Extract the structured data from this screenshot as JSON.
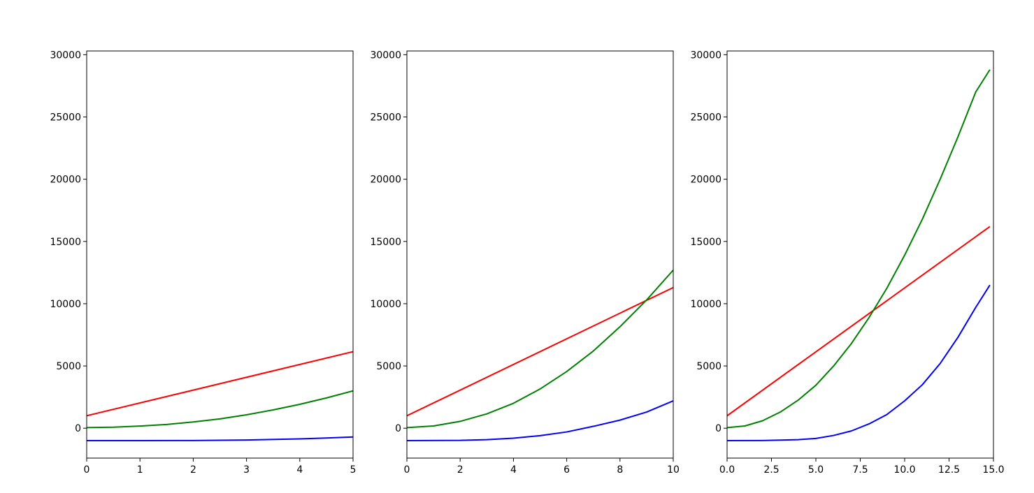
{
  "chart_data": [
    {
      "type": "line",
      "title": "",
      "xlabel": "",
      "ylabel": "",
      "xlim": [
        0,
        5
      ],
      "ylim": [
        -2400,
        30300
      ],
      "grid": false,
      "xticks": [
        0,
        1,
        2,
        3,
        4,
        5
      ],
      "xtick_labels": [
        "0",
        "1",
        "2",
        "3",
        "4",
        "5"
      ],
      "yticks": [
        0,
        5000,
        10000,
        15000,
        20000,
        25000,
        30000
      ],
      "ytick_labels": [
        "0",
        "5000",
        "10000",
        "15000",
        "20000",
        "25000",
        "30000"
      ],
      "series": [
        {
          "color": "#ff0000",
          "x": [
            0,
            5
          ],
          "y": [
            1000,
            6150
          ]
        },
        {
          "color": "#008000",
          "x": [
            0,
            0.5,
            1,
            1.5,
            2,
            2.5,
            3,
            3.5,
            4,
            4.5,
            5
          ],
          "y": [
            50,
            80,
            175,
            300,
            500,
            750,
            1080,
            1470,
            1920,
            2430,
            3000
          ]
        },
        {
          "color": "#0000ff",
          "x": [
            0,
            1,
            2,
            3,
            4,
            4.5,
            5
          ],
          "y": [
            -1000,
            -1000,
            -990,
            -950,
            -860,
            -790,
            -700
          ]
        }
      ]
    },
    {
      "type": "line",
      "title": "",
      "xlabel": "",
      "ylabel": "",
      "xlim": [
        0,
        10
      ],
      "ylim": [
        -2400,
        30300
      ],
      "grid": false,
      "xticks": [
        0,
        2,
        4,
        6,
        8,
        10
      ],
      "xtick_labels": [
        "0",
        "2",
        "4",
        "6",
        "8",
        "10"
      ],
      "yticks": [
        0,
        5000,
        10000,
        15000,
        20000,
        25000,
        30000
      ],
      "ytick_labels": [
        "0",
        "5000",
        "10000",
        "15000",
        "20000",
        "25000",
        "30000"
      ],
      "series": [
        {
          "color": "#ff0000",
          "x": [
            0,
            10
          ],
          "y": [
            1000,
            11300
          ]
        },
        {
          "color": "#008000",
          "x": [
            0,
            1,
            2,
            3,
            4,
            5,
            6,
            7,
            8,
            9,
            10
          ],
          "y": [
            50,
            180,
            550,
            1150,
            2000,
            3150,
            4550,
            6200,
            8150,
            10300,
            12700
          ]
        },
        {
          "color": "#0000ff",
          "x": [
            0,
            2,
            3,
            4,
            5,
            6,
            7,
            8,
            9,
            10
          ],
          "y": [
            -1000,
            -980,
            -920,
            -800,
            -600,
            -300,
            150,
            650,
            1300,
            2200
          ]
        }
      ]
    },
    {
      "type": "line",
      "title": "",
      "xlabel": "",
      "ylabel": "",
      "xlim": [
        0,
        15
      ],
      "ylim": [
        -2400,
        30300
      ],
      "grid": false,
      "xticks": [
        0,
        2.5,
        5,
        7.5,
        10,
        12.5,
        15
      ],
      "xtick_labels": [
        "0.0",
        "2.5",
        "5.0",
        "7.5",
        "10.0",
        "12.5",
        "15.0"
      ],
      "yticks": [
        0,
        5000,
        10000,
        15000,
        20000,
        25000,
        30000
      ],
      "ytick_labels": [
        "0",
        "5000",
        "10000",
        "15000",
        "20000",
        "25000",
        "30000"
      ],
      "series": [
        {
          "color": "#ff0000",
          "x": [
            0,
            14.8
          ],
          "y": [
            1000,
            16200
          ]
        },
        {
          "color": "#008000",
          "x": [
            0,
            1,
            2,
            3,
            4,
            5,
            6,
            7,
            8,
            9,
            10,
            11,
            12,
            13,
            14,
            14.8
          ],
          "y": [
            50,
            180,
            600,
            1300,
            2250,
            3450,
            5000,
            6800,
            8900,
            11250,
            13900,
            16800,
            20000,
            23400,
            27000,
            28800
          ]
        },
        {
          "color": "#0000ff",
          "x": [
            0,
            2,
            4,
            5,
            6,
            7,
            8,
            9,
            10,
            11,
            12,
            13,
            14,
            14.8
          ],
          "y": [
            -1000,
            -990,
            -920,
            -820,
            -580,
            -220,
            350,
            1100,
            2200,
            3500,
            5200,
            7300,
            9700,
            11500
          ]
        }
      ]
    }
  ]
}
